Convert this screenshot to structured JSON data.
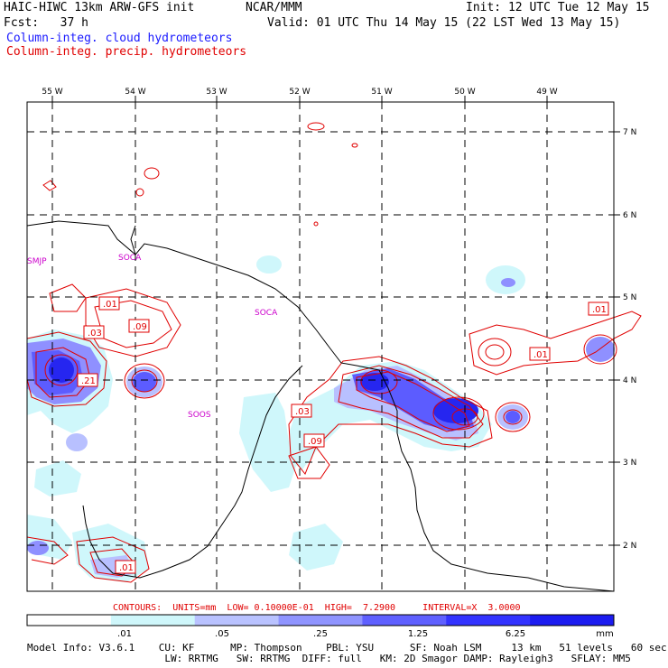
{
  "header": {
    "title_left": "HAIC-HIWC 13km ARW-GFS init",
    "title_center": "NCAR/MMM",
    "init": "Init: 12 UTC Tue 12 May 15",
    "fcst": "Fcst:   37 h",
    "valid": "Valid: 01 UTC Thu 14 May 15 (22 LST Wed 13 May 15)",
    "legend_cloud": "Column-integ. cloud hydrometeors",
    "legend_precip": "Column-integ. precip. hydrometeors",
    "colors": {
      "cloud": "#1a1aff",
      "precip": "#e00000"
    }
  },
  "map": {
    "lon_labels": [
      "55 W",
      "54 W",
      "53 W",
      "52 W",
      "51 W",
      "50 W",
      "49 W"
    ],
    "lat_labels": [
      "7 N",
      "6 N",
      "5 N",
      "4 N",
      "3 N",
      "2 N"
    ],
    "station_labels": [
      "SMJP",
      "SOCA",
      "SOCA",
      "SOOS"
    ],
    "contour_labels": [
      ".01",
      ".09",
      ".03",
      ".21",
      ".03",
      ".09",
      ".01",
      ".01",
      ".01"
    ],
    "shading_colors": [
      "#ffffff",
      "#cff7fb",
      "#b8c0ff",
      "#8f90ff",
      "#5c5cff",
      "#2626f0",
      "#1c1cff"
    ]
  },
  "contour_info": "CONTOURS:  UNITS=mm  LOW= 0.10000E-01  HIGH=  7.2900     INTERVAL=X  3.0000",
  "colorbar": {
    "ticks": [
      ".01",
      ".05",
      ".25",
      "1.25",
      "6.25"
    ],
    "unit": "mm",
    "colors": [
      "#ffffff",
      "#cff7fb",
      "#b9c2ff",
      "#8f94ff",
      "#5f60ff",
      "#3333ff",
      "#1c1cf0"
    ]
  },
  "model_info": {
    "line1": "Model Info: V3.6.1    CU: KF      MP: Thompson    PBL: YSU      SF: Noah LSM     13 km   51 levels   60 sec",
    "line2": "                       LW: RRTMG   SW: RRTMG  DIFF: full   KM: 2D Smagor DAMP: Rayleigh3   SFLAY: MM5"
  }
}
